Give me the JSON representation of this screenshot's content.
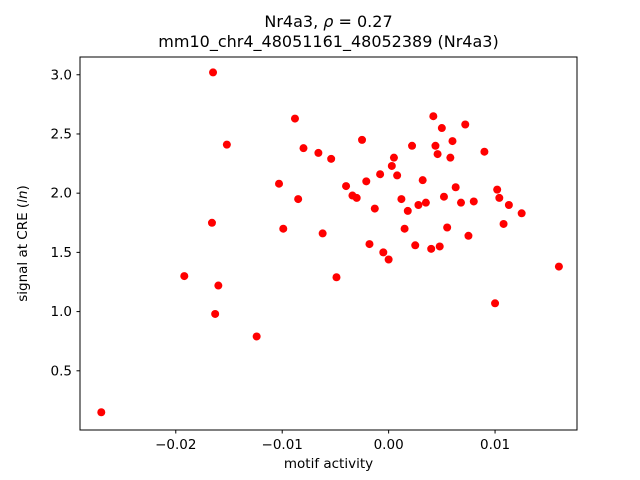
{
  "figure": {
    "title_line1_segments": [
      {
        "text": "Nr4a3, ",
        "italic": false
      },
      {
        "text": "ρ",
        "italic": true
      },
      {
        "text": " = 0.27",
        "italic": false
      }
    ],
    "title_line2": "mm10_chr4_48051161_48052389 (Nr4a3)",
    "xlabel": "motif activity",
    "ylabel_segments": [
      {
        "text": "signal at CRE (",
        "italic": false
      },
      {
        "text": "ln",
        "italic": true
      },
      {
        "text": ")",
        "italic": false
      }
    ]
  },
  "chart_data": {
    "type": "scatter",
    "title": "Nr4a3, ρ = 0.27",
    "subtitle": "mm10_chr4_48051161_48052389 (Nr4a3)",
    "xlabel": "motif activity",
    "ylabel": "signal at CRE (ln)",
    "marker_color": "#ff0000",
    "marker_size_px": 4,
    "grid": false,
    "legend": "none",
    "xlim": [
      -0.029,
      0.0177
    ],
    "ylim": [
      0.0,
      3.15
    ],
    "xticks": [
      -0.02,
      -0.01,
      0.0,
      0.01
    ],
    "yticks": [
      0.5,
      1.0,
      1.5,
      2.0,
      2.5,
      3.0
    ],
    "points": [
      [
        -0.027,
        0.15
      ],
      [
        -0.0192,
        1.3
      ],
      [
        -0.0165,
        3.02
      ],
      [
        -0.0166,
        1.75
      ],
      [
        -0.0163,
        0.98
      ],
      [
        -0.016,
        1.22
      ],
      [
        -0.0152,
        2.41
      ],
      [
        -0.0124,
        0.79
      ],
      [
        -0.0103,
        2.08
      ],
      [
        -0.0099,
        1.7
      ],
      [
        -0.0088,
        2.63
      ],
      [
        -0.0085,
        1.95
      ],
      [
        -0.008,
        2.38
      ],
      [
        -0.0066,
        2.34
      ],
      [
        -0.0062,
        1.66
      ],
      [
        -0.0054,
        2.29
      ],
      [
        -0.0049,
        1.29
      ],
      [
        -0.004,
        2.06
      ],
      [
        -0.0034,
        1.98
      ],
      [
        -0.003,
        1.96
      ],
      [
        -0.0025,
        2.45
      ],
      [
        -0.0021,
        2.1
      ],
      [
        -0.0018,
        1.57
      ],
      [
        -0.0013,
        1.87
      ],
      [
        -0.0008,
        2.16
      ],
      [
        -0.0005,
        1.5
      ],
      [
        0.0,
        1.44
      ],
      [
        0.0003,
        2.23
      ],
      [
        0.0005,
        2.3
      ],
      [
        0.0008,
        2.15
      ],
      [
        0.0012,
        1.95
      ],
      [
        0.0015,
        1.7
      ],
      [
        0.0018,
        1.85
      ],
      [
        0.0022,
        2.4
      ],
      [
        0.0025,
        1.56
      ],
      [
        0.0028,
        1.9
      ],
      [
        0.0032,
        2.11
      ],
      [
        0.0035,
        1.92
      ],
      [
        0.004,
        1.53
      ],
      [
        0.0042,
        2.65
      ],
      [
        0.0044,
        2.4
      ],
      [
        0.0046,
        2.33
      ],
      [
        0.0048,
        1.55
      ],
      [
        0.005,
        2.55
      ],
      [
        0.0052,
        1.97
      ],
      [
        0.0055,
        1.71
      ],
      [
        0.0058,
        2.3
      ],
      [
        0.006,
        2.44
      ],
      [
        0.0063,
        2.05
      ],
      [
        0.0068,
        1.92
      ],
      [
        0.0072,
        2.58
      ],
      [
        0.0075,
        1.64
      ],
      [
        0.008,
        1.93
      ],
      [
        0.009,
        2.35
      ],
      [
        0.01,
        1.07
      ],
      [
        0.0102,
        2.03
      ],
      [
        0.0104,
        1.96
      ],
      [
        0.0108,
        1.74
      ],
      [
        0.0113,
        1.9
      ],
      [
        0.0125,
        1.83
      ],
      [
        0.016,
        1.38
      ]
    ]
  }
}
